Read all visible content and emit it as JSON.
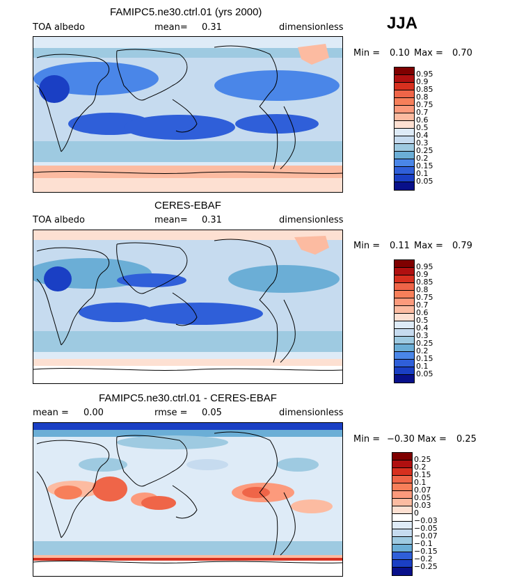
{
  "season": "JJA",
  "panels": [
    {
      "title": "FAMIPC5.ne30.ctrl.01 (yrs 2000)",
      "left_label": "TOA albedo",
      "mid_label": "mean=",
      "mid_value": "0.31",
      "right_label": "dimensionless",
      "min_label": "Min =",
      "min_value": "0.10",
      "max_label": "Max =",
      "max_value": "0.70",
      "colorbar_labels": [
        "0.95",
        "0.9",
        "0.85",
        "0.8",
        "0.75",
        "0.7",
        "0.6",
        "0.5",
        "0.4",
        "0.3",
        "0.25",
        "0.2",
        "0.15",
        "0.1",
        "0.05"
      ]
    },
    {
      "title": "CERES-EBAF",
      "left_label": "TOA albedo",
      "mid_label": "mean=",
      "mid_value": "0.31",
      "right_label": "dimensionless",
      "min_label": "Min =",
      "min_value": "0.11",
      "max_label": "Max =",
      "max_value": "0.79",
      "colorbar_labels": [
        "0.95",
        "0.9",
        "0.85",
        "0.8",
        "0.75",
        "0.7",
        "0.6",
        "0.5",
        "0.4",
        "0.3",
        "0.25",
        "0.2",
        "0.15",
        "0.1",
        "0.05"
      ]
    },
    {
      "title": "FAMIPC5.ne30.ctrl.01 - CERES-EBAF",
      "left_label": "mean =",
      "left_value": "0.00",
      "mid_label": "rmse =",
      "mid_value": "0.05",
      "right_label": "dimensionless",
      "min_label": "Min =",
      "min_value": "−0.30",
      "max_label": "Max =",
      "max_value": "0.25",
      "colorbar_labels": [
        "0.25",
        "0.2",
        "0.15",
        "0.1",
        "0.07",
        "0.05",
        "0.03",
        "0",
        "−0.03",
        "−0.05",
        "−0.07",
        "−0.1",
        "−0.15",
        "−0.2",
        "−0.25"
      ]
    }
  ],
  "colors": {
    "seq_16": [
      "#7f0000",
      "#b01010",
      "#d7301f",
      "#ef6548",
      "#f77f5a",
      "#fc9a7c",
      "#fcbba1",
      "#fde0d2",
      "#deebf7",
      "#c6dbef",
      "#9ecae1",
      "#6baed6",
      "#4a86e8",
      "#2f5fd9",
      "#1a3fc4",
      "#08108a"
    ],
    "div_16": [
      "#7f0000",
      "#b01010",
      "#d7301f",
      "#ef6548",
      "#f77f5a",
      "#fc9a7c",
      "#fcbba1",
      "#fde0d2",
      "#ffffff",
      "#deebf7",
      "#c6dbef",
      "#9ecae1",
      "#6baed6",
      "#2f5fd9",
      "#1a3fc4",
      "#08108a"
    ]
  }
}
